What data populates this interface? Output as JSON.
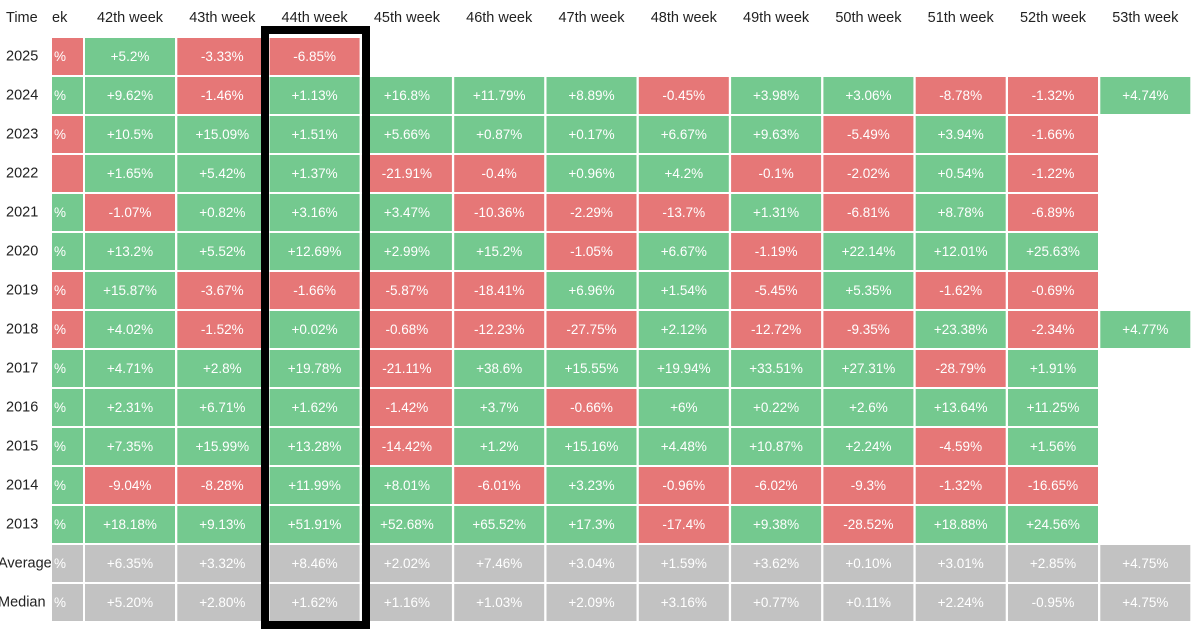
{
  "table": {
    "corner": "Time",
    "headers": [
      "ek",
      "42th week",
      "43th week",
      "44th week",
      "45th week",
      "46th week",
      "47th week",
      "48th week",
      "49th week",
      "50th week",
      "51th week",
      "52th week",
      "53th week"
    ],
    "palette": {
      "green": "#74c98f",
      "red": "#e67777",
      "gray": "#c2c2c2"
    },
    "rows": [
      {
        "label": "2025",
        "cells": [
          "%",
          "+5.2%",
          "-3.33%",
          "-6.85%",
          null,
          null,
          null,
          null,
          null,
          null,
          null,
          null,
          null
        ],
        "colors": [
          "red",
          "green",
          "red",
          "red",
          null,
          null,
          null,
          null,
          null,
          null,
          null,
          null,
          null
        ]
      },
      {
        "label": "2024",
        "cells": [
          "%",
          "+9.62%",
          "-1.46%",
          "+1.13%",
          "+16.8%",
          "+11.79%",
          "+8.89%",
          "-0.45%",
          "+3.98%",
          "+3.06%",
          "-8.78%",
          "-1.32%",
          "+4.74%"
        ],
        "colors": [
          "green",
          "green",
          "red",
          "green",
          "green",
          "green",
          "green",
          "red",
          "green",
          "green",
          "red",
          "red",
          "green"
        ]
      },
      {
        "label": "2023",
        "cells": [
          "%",
          "+10.5%",
          "+15.09%",
          "+1.51%",
          "+5.66%",
          "+0.87%",
          "+0.17%",
          "+6.67%",
          "+9.63%",
          "-5.49%",
          "+3.94%",
          "-1.66%",
          null
        ],
        "colors": [
          "red",
          "green",
          "green",
          "green",
          "green",
          "green",
          "green",
          "green",
          "green",
          "red",
          "green",
          "red",
          null
        ]
      },
      {
        "label": "2022",
        "cells": [
          null,
          "+1.65%",
          "+5.42%",
          "+1.37%",
          "-21.91%",
          "-0.4%",
          "+0.96%",
          "+4.2%",
          "-0.1%",
          "-2.02%",
          "+0.54%",
          "-1.22%",
          null
        ],
        "colors": [
          "red",
          "green",
          "green",
          "green",
          "red",
          "red",
          "green",
          "green",
          "red",
          "red",
          "green",
          "red",
          null
        ]
      },
      {
        "label": "2021",
        "cells": [
          "%",
          "-1.07%",
          "+0.82%",
          "+3.16%",
          "+3.47%",
          "-10.36%",
          "-2.29%",
          "-13.7%",
          "+1.31%",
          "-6.81%",
          "+8.78%",
          "-6.89%",
          null
        ],
        "colors": [
          "green",
          "red",
          "green",
          "green",
          "green",
          "red",
          "red",
          "red",
          "green",
          "red",
          "green",
          "red",
          null
        ]
      },
      {
        "label": "2020",
        "cells": [
          "%",
          "+13.2%",
          "+5.52%",
          "+12.69%",
          "+2.99%",
          "+15.2%",
          "-1.05%",
          "+6.67%",
          "-1.19%",
          "+22.14%",
          "+12.01%",
          "+25.63%",
          null
        ],
        "colors": [
          "green",
          "green",
          "green",
          "green",
          "green",
          "green",
          "red",
          "green",
          "red",
          "green",
          "green",
          "green",
          null
        ]
      },
      {
        "label": "2019",
        "cells": [
          "%",
          "+15.87%",
          "-3.67%",
          "-1.66%",
          "-5.87%",
          "-18.41%",
          "+6.96%",
          "+1.54%",
          "-5.45%",
          "+5.35%",
          "-1.62%",
          "-0.69%",
          null
        ],
        "colors": [
          "red",
          "green",
          "red",
          "red",
          "red",
          "red",
          "green",
          "green",
          "red",
          "green",
          "red",
          "red",
          null
        ]
      },
      {
        "label": "2018",
        "cells": [
          "%",
          "+4.02%",
          "-1.52%",
          "+0.02%",
          "-0.68%",
          "-12.23%",
          "-27.75%",
          "+2.12%",
          "-12.72%",
          "-9.35%",
          "+23.38%",
          "-2.34%",
          "+4.77%"
        ],
        "colors": [
          "red",
          "green",
          "red",
          "green",
          "red",
          "red",
          "red",
          "green",
          "red",
          "red",
          "green",
          "red",
          "green"
        ]
      },
      {
        "label": "2017",
        "cells": [
          "%",
          "+4.71%",
          "+2.8%",
          "+19.78%",
          "-21.11%",
          "+38.6%",
          "+15.55%",
          "+19.94%",
          "+33.51%",
          "+27.31%",
          "-28.79%",
          "+1.91%",
          null
        ],
        "colors": [
          "green",
          "green",
          "green",
          "green",
          "red",
          "green",
          "green",
          "green",
          "green",
          "green",
          "red",
          "green",
          null
        ]
      },
      {
        "label": "2016",
        "cells": [
          "%",
          "+2.31%",
          "+6.71%",
          "+1.62%",
          "-1.42%",
          "+3.7%",
          "-0.66%",
          "+6%",
          "+0.22%",
          "+2.6%",
          "+13.64%",
          "+11.25%",
          null
        ],
        "colors": [
          "green",
          "green",
          "green",
          "green",
          "red",
          "green",
          "red",
          "green",
          "green",
          "green",
          "green",
          "green",
          null
        ]
      },
      {
        "label": "2015",
        "cells": [
          "%",
          "+7.35%",
          "+15.99%",
          "+13.28%",
          "-14.42%",
          "+1.2%",
          "+15.16%",
          "+4.48%",
          "+10.87%",
          "+2.24%",
          "-4.59%",
          "+1.56%",
          null
        ],
        "colors": [
          "green",
          "green",
          "green",
          "green",
          "red",
          "green",
          "green",
          "green",
          "green",
          "green",
          "red",
          "green",
          null
        ]
      },
      {
        "label": "2014",
        "cells": [
          "%",
          "-9.04%",
          "-8.28%",
          "+11.99%",
          "+8.01%",
          "-6.01%",
          "+3.23%",
          "-0.96%",
          "-6.02%",
          "-9.3%",
          "-1.32%",
          "-16.65%",
          null
        ],
        "colors": [
          "green",
          "red",
          "red",
          "green",
          "green",
          "red",
          "green",
          "red",
          "red",
          "red",
          "red",
          "red",
          null
        ]
      },
      {
        "label": "2013",
        "cells": [
          "%",
          "+18.18%",
          "+9.13%",
          "+51.91%",
          "+52.68%",
          "+65.52%",
          "+17.3%",
          "-17.4%",
          "+9.38%",
          "-28.52%",
          "+18.88%",
          "+24.56%",
          null
        ],
        "colors": [
          "green",
          "green",
          "green",
          "green",
          "green",
          "green",
          "green",
          "red",
          "green",
          "red",
          "green",
          "green",
          null
        ]
      },
      {
        "label": "Average",
        "cells": [
          "%",
          "+6.35%",
          "+3.32%",
          "+8.46%",
          "+2.02%",
          "+7.46%",
          "+3.04%",
          "+1.59%",
          "+3.62%",
          "+0.10%",
          "+3.01%",
          "+2.85%",
          "+4.75%"
        ],
        "colors": [
          "gray",
          "gray",
          "gray",
          "gray",
          "gray",
          "gray",
          "gray",
          "gray",
          "gray",
          "gray",
          "gray",
          "gray",
          "gray"
        ]
      },
      {
        "label": "Median",
        "cells": [
          "%",
          "+5.20%",
          "+2.80%",
          "+1.62%",
          "+1.16%",
          "+1.03%",
          "+2.09%",
          "+3.16%",
          "+0.77%",
          "+0.11%",
          "+2.24%",
          "-0.95%",
          "+4.75%"
        ],
        "colors": [
          "gray",
          "gray",
          "gray",
          "gray",
          "gray",
          "gray",
          "gray",
          "gray",
          "gray",
          "gray",
          "gray",
          "gray",
          "gray"
        ]
      }
    ]
  }
}
